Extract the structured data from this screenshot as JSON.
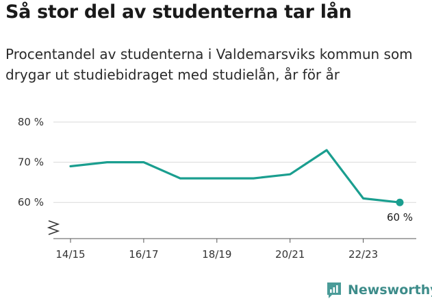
{
  "title": "Så stor del av studenterna tar lån",
  "subtitle": "Procentandel av studenterna i Valdemarsviks kommun som drygar ut studiebidraget med studielån, år för år",
  "brand": {
    "name": "Newsworthy",
    "color": "#4a9b98"
  },
  "chart_data": {
    "type": "line",
    "x": [
      "14/15",
      "15/16",
      "16/17",
      "17/18",
      "18/19",
      "19/20",
      "20/21",
      "21/22",
      "22/23",
      "23/24"
    ],
    "series": [
      {
        "values": [
          69,
          70,
          70,
          66,
          66,
          66,
          67,
          73,
          61,
          60
        ],
        "color": "#1a9e8f"
      }
    ],
    "xticks": [
      "14/15",
      "16/17",
      "18/19",
      "20/21",
      "22/23"
    ],
    "yticks": [
      60,
      70,
      80
    ],
    "ytick_labels": [
      "60 %",
      "70 %",
      "80 %"
    ],
    "ylim": [
      51,
      80
    ],
    "y_axis_break": true,
    "grid": true,
    "end_label": "60 %",
    "xlabel": "",
    "ylabel": ""
  }
}
